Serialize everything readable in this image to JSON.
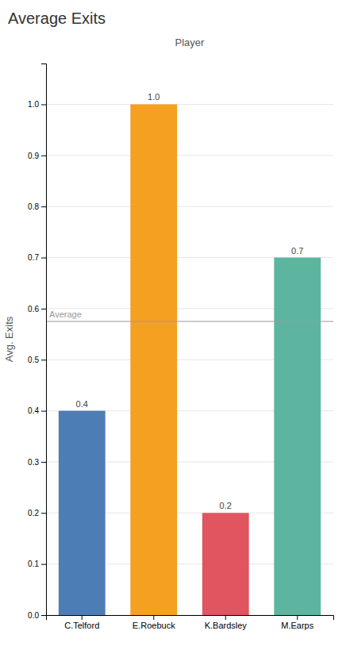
{
  "chart_data": {
    "type": "bar",
    "title": "Average Exits",
    "x_label": "Player",
    "y_label": "Avg. Exits",
    "categories": [
      "C.Telford",
      "E.Roebuck",
      "K.Bardsley",
      "M.Earps"
    ],
    "values": [
      0.4,
      1.0,
      0.2,
      0.7
    ],
    "value_labels": [
      "0.4",
      "1.0",
      "0.2",
      "0.7"
    ],
    "colors": [
      "#4d7db5",
      "#f5a020",
      "#e05560",
      "#5db5a0"
    ],
    "average_line": {
      "value": 0.575,
      "label": "Average",
      "color": "#999999"
    },
    "ylim": [
      0.0,
      1.08
    ],
    "yticks": [
      {
        "value": 0.0,
        "label": "0.0"
      },
      0.1,
      0.2,
      0.3,
      0.4,
      0.5,
      0.6,
      0.7,
      0.8,
      0.9,
      {
        "value": 1.0,
        "label": "1.0"
      }
    ],
    "grid": true,
    "data_labels": true
  }
}
